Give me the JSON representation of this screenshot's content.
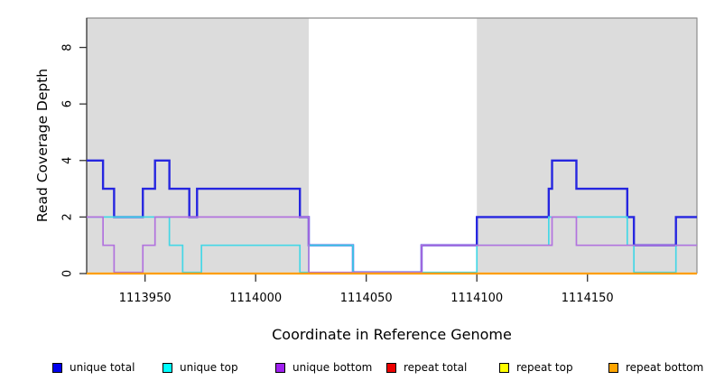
{
  "figure": {
    "xlabel": "Coordinate in Reference Genome",
    "ylabel": "Read Coverage Depth"
  },
  "chart_data": {
    "type": "line",
    "subtype": "step",
    "title": "",
    "xlabel": "Coordinate in Reference Genome",
    "ylabel": "Read Coverage Depth",
    "grid": false,
    "x_axis": {
      "min": 1113923.6,
      "max": 1114199.5,
      "ticks": [
        1113950,
        1114000,
        1114050,
        1114100,
        1114150
      ]
    },
    "y_axis": {
      "min": 0,
      "max": 9.04,
      "ticks": [
        0,
        2,
        4,
        6,
        8
      ]
    },
    "background_shading": [
      {
        "label": "shaded-region-left",
        "x_start": 1113923.6,
        "x_end": 1114024,
        "color": "#dcdcdc"
      },
      {
        "label": "shaded-region-right",
        "x_start": 1114100,
        "x_end": 1114199.5,
        "color": "#dcdcdc"
      }
    ],
    "series": [
      {
        "label": "repeat total",
        "group": "repeat",
        "line_color": "#e00000",
        "line_width": 1.4,
        "steps": [
          [
            1113923.6,
            0
          ]
        ]
      },
      {
        "label": "repeat top",
        "group": "repeat",
        "line_color": "#f0f000",
        "line_width": 1.4,
        "steps": [
          [
            1113923.6,
            0
          ]
        ]
      },
      {
        "label": "unique total",
        "group": "unique",
        "line_color": "#2626e0",
        "line_width": 2.4,
        "steps": [
          [
            1113923.6,
            4
          ],
          [
            1113931,
            3
          ],
          [
            1113936,
            2
          ],
          [
            1113949,
            3
          ],
          [
            1113954.5,
            4
          ],
          [
            1113961,
            3
          ],
          [
            1113970,
            2
          ],
          [
            1113973.5,
            3
          ],
          [
            1114020,
            2
          ],
          [
            1114024,
            1
          ],
          [
            1114044,
            0
          ],
          [
            1114075,
            1
          ],
          [
            1114100,
            2
          ],
          [
            1114132.5,
            3
          ],
          [
            1114134,
            4
          ],
          [
            1114145,
            3
          ],
          [
            1114168,
            2
          ],
          [
            1114171,
            1
          ],
          [
            1114190,
            2
          ]
        ]
      },
      {
        "label": "unique top",
        "group": "unique",
        "line_color": "#45d7e6",
        "line_width": 1.7,
        "steps": [
          [
            1113923.6,
            2
          ],
          [
            1113961,
            1
          ],
          [
            1113967,
            0
          ],
          [
            1113975.5,
            1
          ],
          [
            1114020,
            0
          ],
          [
            1114024,
            1
          ],
          [
            1114044,
            0
          ],
          [
            1114100,
            1
          ],
          [
            1114132.5,
            2
          ],
          [
            1114168,
            1
          ],
          [
            1114171,
            0
          ],
          [
            1114190,
            1
          ]
        ]
      },
      {
        "label": "unique bottom",
        "group": "unique",
        "line_color": "#b273de",
        "line_width": 1.7,
        "steps": [
          [
            1113923.6,
            2
          ],
          [
            1113931,
            1
          ],
          [
            1113936,
            0
          ],
          [
            1113949,
            1
          ],
          [
            1113954.5,
            2
          ],
          [
            1114024,
            0
          ],
          [
            1114075,
            1
          ],
          [
            1114134,
            2
          ],
          [
            1114145,
            1
          ]
        ]
      },
      {
        "label": "repeat bottom",
        "group": "repeat",
        "line_color": "#ff9e00",
        "line_width": 2.2,
        "steps": [
          [
            1113923.6,
            0
          ]
        ]
      }
    ],
    "legend": [
      {
        "label": "unique total",
        "color": "#0000ee"
      },
      {
        "label": "unique top",
        "color": "#00ffff"
      },
      {
        "label": "unique bottom",
        "color": "#a020f0"
      },
      {
        "label": "repeat total",
        "color": "#ee0000"
      },
      {
        "label": "repeat top",
        "color": "#ffff00"
      },
      {
        "label": "repeat bottom",
        "color": "#ffa500"
      }
    ],
    "legend_position": "bottom"
  },
  "style": {
    "shading_color": "#dcdcdc",
    "frame_color": "#8c8c8c",
    "axis_color": "#333333",
    "text_color": "#000000"
  }
}
